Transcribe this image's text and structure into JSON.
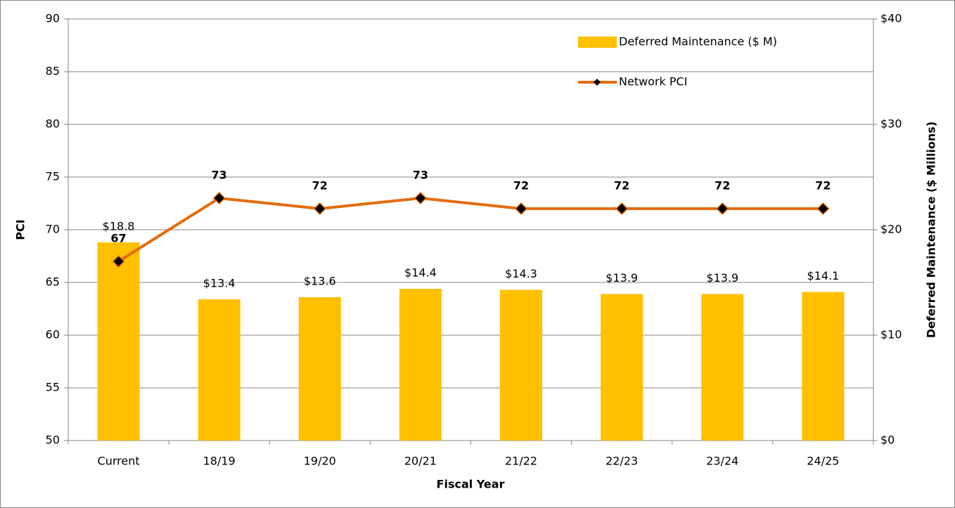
{
  "chart_data": {
    "type": "bar",
    "x_label": "Fiscal Year",
    "y_label": "PCI",
    "y2_label": "Deferred Maintenance ($ Millions)",
    "categories": [
      "Current",
      "18/19",
      "19/20",
      "20/21",
      "21/22",
      "22/23",
      "23/24",
      "24/25"
    ],
    "series": [
      {
        "name": "Deferred Maintenance ($ M)",
        "type": "bar",
        "axis": "y2",
        "color": "#FFC000",
        "values": [
          18.8,
          13.4,
          13.6,
          14.4,
          14.3,
          13.9,
          13.9,
          14.1
        ],
        "value_labels": [
          "$18.8",
          "$13.4",
          "$13.6",
          "$14.4",
          "$14.3",
          "$13.9",
          "$13.9",
          "$14.1"
        ]
      },
      {
        "name": "Network PCI",
        "type": "line",
        "color": "#E46C0A",
        "values": [
          67,
          73,
          72,
          73,
          72,
          72,
          72,
          72
        ]
      }
    ],
    "ylim": [
      50,
      90
    ],
    "yticks": [
      50,
      55,
      60,
      65,
      70,
      75,
      80,
      85,
      90
    ],
    "y2lim": [
      0,
      40
    ],
    "y2ticks": [
      {
        "value": 0,
        "label": "$0"
      },
      {
        "value": 10,
        "label": "$10"
      },
      {
        "value": 20,
        "label": "$20"
      },
      {
        "value": 30,
        "label": "$30"
      },
      {
        "value": 40,
        "label": "$40"
      }
    ],
    "grid": true,
    "legend": "upper right"
  }
}
